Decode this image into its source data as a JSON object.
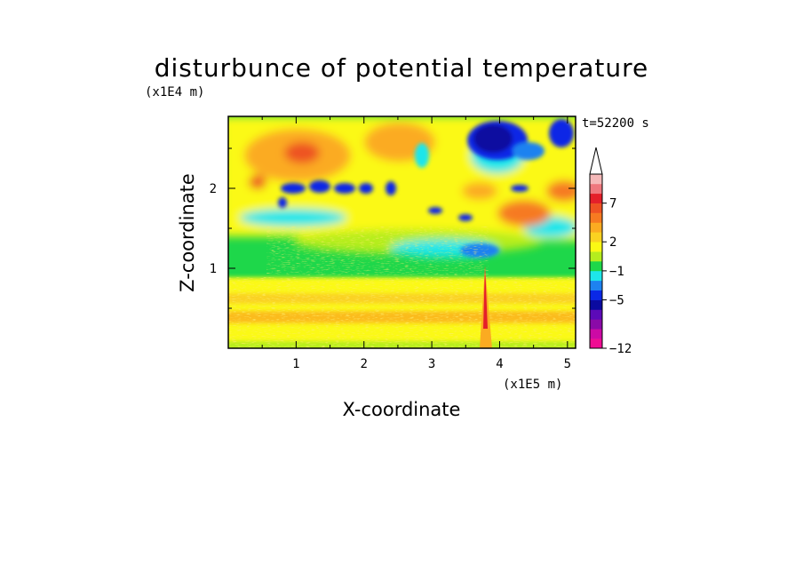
{
  "chart_data": {
    "type": "heatmap",
    "title": "disturbunce of potential temperature",
    "xlabel": "X-coordinate",
    "ylabel": "Z-coordinate",
    "x_unit": "(x1E5 m)",
    "y_unit": "(x1E4 m)",
    "time_label": "t=52200 s",
    "xlim": [
      0,
      5.12
    ],
    "ylim": [
      0,
      2.9
    ],
    "x_ticks": [
      "1",
      "2",
      "3",
      "4",
      "5"
    ],
    "y_ticks": [
      "1",
      "2"
    ],
    "colorbar": {
      "tick_labels": [
        "7",
        "2",
        "−1",
        "−5",
        "−12"
      ],
      "extend": "max",
      "colors": [
        "#f00c93",
        "#cc0aa5",
        "#8a0aa8",
        "#5c0ab8",
        "#0a0aa0",
        "#0a28e6",
        "#1e82f0",
        "#1ee6ea",
        "#1ed74a",
        "#b5ed1e",
        "#fbf914",
        "#fad221",
        "#fbab21",
        "#f67a21",
        "#ee5223",
        "#e41f2a",
        "#ef787e",
        "#f5b9b9"
      ]
    },
    "features": [
      {
        "region": "lower layer below z=1",
        "value_range": "0 to 2",
        "color": "yellow/orange"
      },
      {
        "region": "band z=1 to 1.5",
        "value_range": "-1 to 0",
        "color": "green"
      },
      {
        "region": "upper left z=1.5 to 2.9",
        "value_range": "-5 to 5",
        "color": "alternating orange/blue wave bands"
      },
      {
        "region": "top right near x=3.7-4.2, z=2.6",
        "value_range": "-5",
        "color": "dark blue"
      },
      {
        "region": "vertical plume x=3.8, z=0.3-1.1",
        "value_range": "3 to 7",
        "color": "orange/red"
      }
    ]
  }
}
